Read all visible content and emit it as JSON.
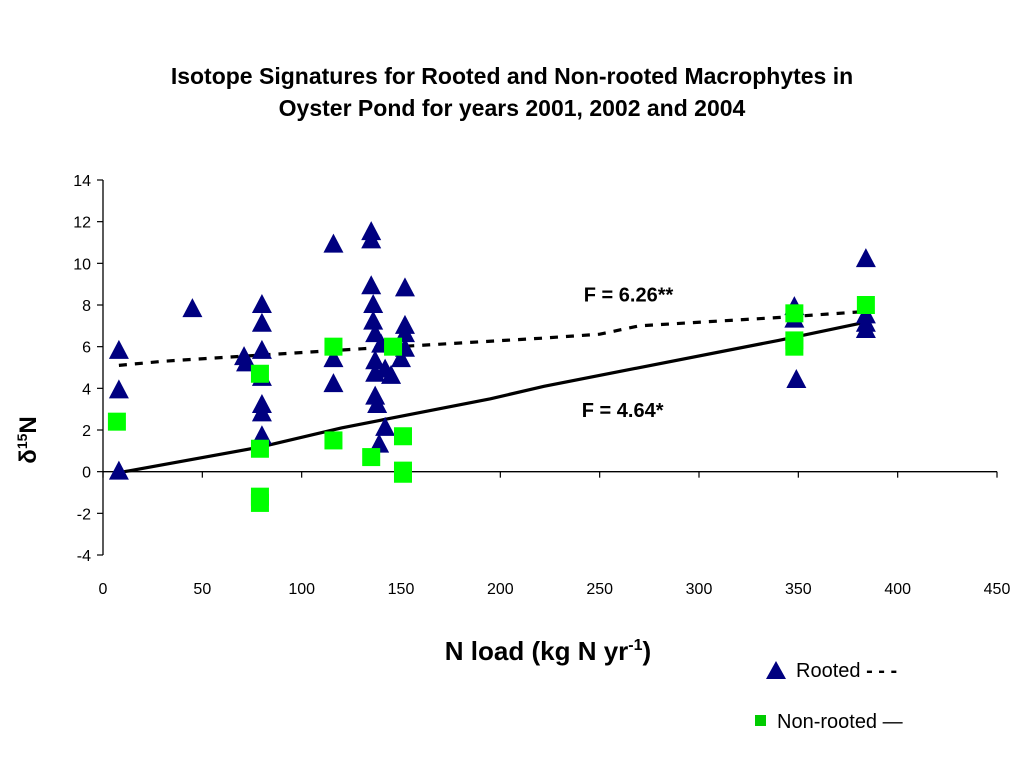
{
  "chart_data": {
    "type": "scatter",
    "title_lines": [
      "Isotope Signatures for Rooted and Non-rooted Macrophytes in",
      "Oyster Pond for years 2001, 2002 and 2004"
    ],
    "xlabel": {
      "main": "N load (kg N yr",
      "superscript": "-1",
      "close": ")"
    },
    "ylabel": {
      "prefix": "δ",
      "superscript": "15",
      "main": "N"
    },
    "xlim": [
      0,
      450
    ],
    "ylim": [
      -4,
      14
    ],
    "xticks": [
      0,
      50,
      100,
      150,
      200,
      250,
      300,
      350,
      400,
      450
    ],
    "yticks": [
      -4,
      -2,
      0,
      2,
      4,
      6,
      8,
      10,
      12,
      14
    ],
    "grid": false,
    "legend_position": "bottom-right",
    "colors": {
      "rooted": "#000080",
      "non_rooted": "#00FF00",
      "non_rooted_legend": "#00CC00",
      "lines": "#000000"
    },
    "series": [
      {
        "name": "Rooted",
        "marker": "triangle",
        "line_style": "dashed",
        "points": [
          [
            8,
            5.8
          ],
          [
            8,
            3.9
          ],
          [
            8,
            0.0
          ],
          [
            45,
            7.8
          ],
          [
            71,
            5.5
          ],
          [
            72,
            5.2
          ],
          [
            80,
            8.0
          ],
          [
            80,
            7.1
          ],
          [
            80,
            5.8
          ],
          [
            80,
            4.5
          ],
          [
            80,
            3.2
          ],
          [
            80,
            2.8
          ],
          [
            80,
            1.7
          ],
          [
            116,
            10.9
          ],
          [
            116,
            5.4
          ],
          [
            116,
            4.2
          ],
          [
            135,
            11.5
          ],
          [
            135,
            11.1
          ],
          [
            135,
            8.9
          ],
          [
            136,
            8.0
          ],
          [
            136,
            7.2
          ],
          [
            137,
            6.6
          ],
          [
            137,
            5.3
          ],
          [
            137,
            4.7
          ],
          [
            137,
            3.6
          ],
          [
            138,
            3.2
          ],
          [
            139,
            1.3
          ],
          [
            140,
            6.1
          ],
          [
            142,
            4.9
          ],
          [
            142,
            2.1
          ],
          [
            145,
            4.6
          ],
          [
            150,
            5.4
          ],
          [
            152,
            8.8
          ],
          [
            152,
            7.0
          ],
          [
            152,
            6.6
          ],
          [
            152,
            5.9
          ],
          [
            348,
            7.9
          ],
          [
            348,
            7.3
          ],
          [
            349,
            4.4
          ],
          [
            384,
            10.2
          ],
          [
            384,
            7.5
          ],
          [
            384,
            7.1
          ],
          [
            384,
            6.8
          ]
        ],
        "fit": [
          [
            8,
            5.1
          ],
          [
            30,
            5.3
          ],
          [
            80,
            5.6
          ],
          [
            130,
            5.9
          ],
          [
            220,
            6.4
          ],
          [
            250,
            6.6
          ],
          [
            270,
            7.0
          ],
          [
            340,
            7.4
          ],
          [
            385,
            7.7
          ]
        ]
      },
      {
        "name": "Non-rooted",
        "marker": "square",
        "line_style": "solid",
        "points": [
          [
            7,
            2.4
          ],
          [
            79,
            4.7
          ],
          [
            79,
            1.1
          ],
          [
            79,
            -1.2
          ],
          [
            79,
            -1.5
          ],
          [
            116,
            6.0
          ],
          [
            116,
            1.5
          ],
          [
            135,
            0.7
          ],
          [
            146,
            6.0
          ],
          [
            151,
            1.7
          ],
          [
            151,
            0.05
          ],
          [
            151,
            -0.1
          ],
          [
            348,
            7.6
          ],
          [
            348,
            6.3
          ],
          [
            348,
            6.0
          ],
          [
            384,
            8.0
          ]
        ],
        "fit": [
          [
            8,
            -0.05
          ],
          [
            80,
            1.2
          ],
          [
            120,
            2.1
          ],
          [
            195,
            3.5
          ],
          [
            222,
            4.1
          ],
          [
            340,
            6.3
          ],
          [
            385,
            7.2
          ]
        ]
      }
    ],
    "annotations": [
      {
        "text": "F = 6.26**",
        "x": 242,
        "y": 8.5
      },
      {
        "text": "F = 4.64*",
        "x": 241,
        "y": 2.95
      }
    ],
    "legend": [
      {
        "label": "Rooted",
        "line_symbol": "- - -"
      },
      {
        "label": "Non-rooted",
        "line_symbol": "—"
      }
    ]
  }
}
